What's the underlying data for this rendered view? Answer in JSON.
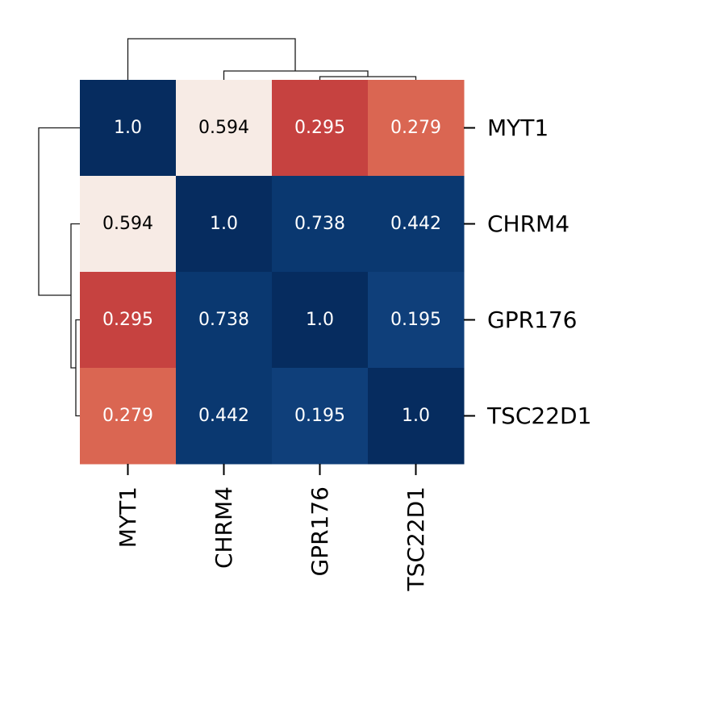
{
  "chart_data": {
    "type": "heatmap",
    "subtype": "clustermap",
    "row_labels": [
      "MYT1",
      "CHRM4",
      "GPR176",
      "TSC22D1"
    ],
    "col_labels": [
      "MYT1",
      "CHRM4",
      "GPR176",
      "TSC22D1"
    ],
    "values": [
      [
        1.0,
        0.594,
        0.295,
        0.279
      ],
      [
        0.594,
        1.0,
        0.738,
        0.442
      ],
      [
        0.295,
        0.738,
        1.0,
        0.195
      ],
      [
        0.279,
        0.442,
        0.195,
        1.0
      ]
    ],
    "annotations": [
      [
        "1.0",
        "0.594",
        "0.295",
        "0.279"
      ],
      [
        "0.594",
        "1.0",
        "0.738",
        "0.442"
      ],
      [
        "0.295",
        "0.738",
        "1.0",
        "0.195"
      ],
      [
        "0.279",
        "0.442",
        "0.195",
        "1.0"
      ]
    ],
    "colors": {
      "1.0": "#062c5f",
      "0.738": "#0a3870",
      "0.594": "#f7ebe5",
      "0.442": "#0a3870",
      "0.295": "#c64240",
      "0.279": "#da6652",
      "0.195": "#0f3f7a"
    },
    "text_colors": {
      "dark_text": "#000000",
      "light_text": "#ffffff"
    },
    "row_dendrogram": "linkage: (GPR176, TSC22D1) -> join CHRM4 -> join MYT1",
    "col_dendrogram": "linkage: (GPR176, TSC22D1) -> join CHRM4 -> join MYT1",
    "colorbar": false
  }
}
